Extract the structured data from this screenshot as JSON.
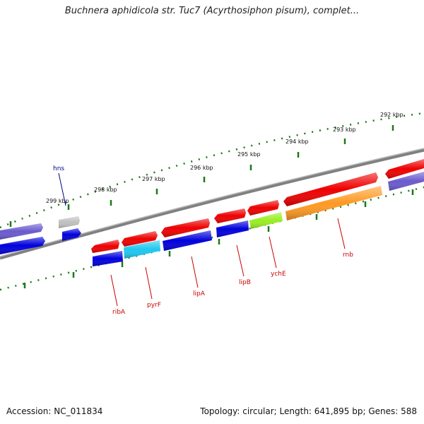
{
  "title": "Buchnera aphidicola str. Tuc7 (Acyrthosiphon pisum), complet...",
  "footer": {
    "accession": "Accession: NC_011834",
    "summary": "Topology: circular; Length: 641,895 bp; Genes: 588"
  },
  "ticks": [
    "299 kbp",
    "298 kbp",
    "297 kbp",
    "296 kbp",
    "295 kbp",
    "294 kbp",
    "293 kbp",
    "292 kbp"
  ],
  "gene_labels": [
    {
      "name": "hns",
      "color": "#00008b"
    },
    {
      "name": "ribA",
      "color": "#cc0000"
    },
    {
      "name": "pyrF",
      "color": "#cc0000"
    },
    {
      "name": "lipA",
      "color": "#cc0000"
    },
    {
      "name": "lipB",
      "color": "#cc0000"
    },
    {
      "name": "ychE",
      "color": "#cc0000"
    },
    {
      "name": "rnb",
      "color": "#cc0000"
    }
  ],
  "colors": {
    "backbone": "#808080",
    "tick": "#1a7a1a",
    "red": "#ee0000",
    "blue": "#0000dd",
    "purple": "#6a5acd",
    "gray": "#c0c0c0",
    "cyan": "#1ec8f0",
    "lime": "#99ee22",
    "orange": "#ff9922"
  }
}
